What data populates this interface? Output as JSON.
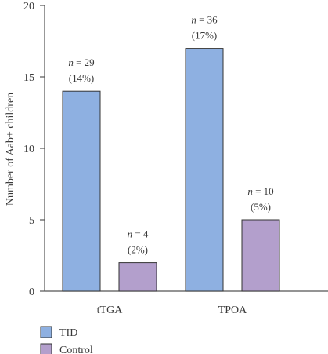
{
  "chart_data": {
    "type": "bar",
    "categories": [
      "tTGA",
      "TPOA"
    ],
    "series": [
      {
        "name": "TID",
        "values": [
          14,
          17
        ],
        "color": "#8eb0e1",
        "labels": [
          [
            "n = 29",
            "(14%)"
          ],
          [
            "n = 36",
            "(17%)"
          ]
        ]
      },
      {
        "name": "Control",
        "values": [
          2,
          5
        ],
        "color": "#b39fcc",
        "labels": [
          [
            "n = 4",
            "(2%)"
          ],
          [
            "n = 10",
            "(5%)"
          ]
        ]
      }
    ],
    "xlabel": "",
    "ylabel": "Number of Aab+ children",
    "ylim": [
      0,
      20
    ],
    "yticks": [
      0,
      5,
      10,
      15,
      20
    ],
    "legend_position": "bottom-left",
    "grid": false
  }
}
